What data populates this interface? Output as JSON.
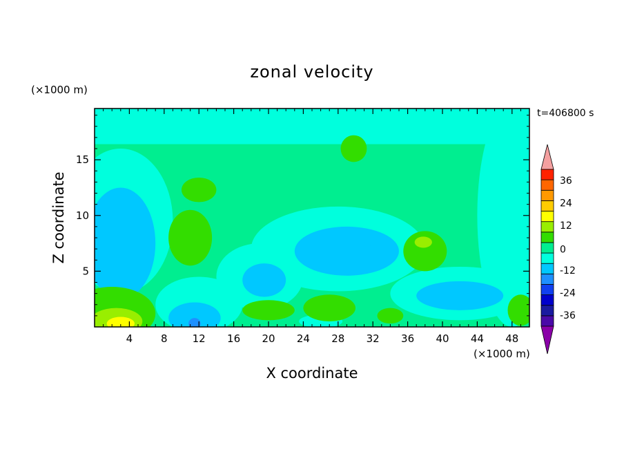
{
  "chart_data": {
    "type": "heatmap",
    "title": "zonal velocity",
    "xlabel": "X coordinate",
    "ylabel": "Z coordinate",
    "x_unit": "(×1000 m)",
    "y_unit": "(×1000 m)",
    "time_label": "t=406800 s",
    "xlim": [
      0,
      50
    ],
    "ylim": [
      0,
      19.6
    ],
    "xticks": [
      4,
      8,
      12,
      16,
      20,
      24,
      28,
      32,
      36,
      40,
      44,
      48
    ],
    "yticks": [
      5,
      10,
      15
    ],
    "colorbar": {
      "levels": [
        -42,
        -36,
        -30,
        -24,
        -18,
        -12,
        -6,
        0,
        6,
        12,
        18,
        24,
        30,
        36,
        42
      ],
      "colors": [
        "#4a0aa8",
        "#1a1aa0",
        "#0000cc",
        "#1040f0",
        "#1e90ff",
        "#00c8ff",
        "#00ffdd",
        "#00ee90",
        "#33dd00",
        "#99ee00",
        "#ffff00",
        "#ffcc00",
        "#ff9900",
        "#ff6600",
        "#ff2200"
      ],
      "under_color": "#8a00a8",
      "over_color": "#f4a0a0",
      "tick_labels": [
        "36",
        "24",
        "12",
        "0",
        "-12",
        "-24",
        "-36"
      ],
      "tick_values": [
        36,
        24,
        12,
        0,
        -12,
        -24,
        -36
      ]
    },
    "background_value": 3,
    "regions": [
      {
        "type": "rect",
        "x": [
          0,
          50
        ],
        "z": [
          16.4,
          19.6
        ],
        "value": -3
      },
      {
        "type": "ellipse",
        "cx": 3,
        "cy": 9.5,
        "rx": 6,
        "ry": 6.5,
        "value": -3
      },
      {
        "type": "ellipse",
        "cx": 3,
        "cy": 7.5,
        "rx": 4,
        "ry": 5,
        "value": -7
      },
      {
        "type": "ellipse",
        "cx": 3,
        "cy": 10.5,
        "rx": 1.8,
        "ry": 1.2,
        "value": -10
      },
      {
        "type": "ellipse",
        "cx": 1.5,
        "cy": 7.2,
        "rx": 1.2,
        "ry": 0.8,
        "value": -10
      },
      {
        "type": "ellipse",
        "cx": 48,
        "cy": 10,
        "rx": 4,
        "ry": 10,
        "value": -3
      },
      {
        "type": "ellipse",
        "cx": 28,
        "cy": 7,
        "rx": 10,
        "ry": 3.8,
        "value": -3
      },
      {
        "type": "ellipse",
        "cx": 29,
        "cy": 6.8,
        "rx": 6,
        "ry": 2.2,
        "value": -7
      },
      {
        "type": "ellipse",
        "cx": 29,
        "cy": 6.8,
        "rx": 3,
        "ry": 1.1,
        "value": -10
      },
      {
        "type": "ellipse",
        "cx": 19,
        "cy": 4.5,
        "rx": 5,
        "ry": 3,
        "value": -3
      },
      {
        "type": "ellipse",
        "cx": 19.5,
        "cy": 4.2,
        "rx": 2.5,
        "ry": 1.5,
        "value": -7
      },
      {
        "type": "ellipse",
        "cx": 12,
        "cy": 2,
        "rx": 5,
        "ry": 2.5,
        "value": -3
      },
      {
        "type": "ellipse",
        "cx": 11.5,
        "cy": 0.8,
        "rx": 3,
        "ry": 1.4,
        "value": -7
      },
      {
        "type": "ellipse",
        "cx": 11.5,
        "cy": 0.5,
        "rx": 1.6,
        "ry": 0.8,
        "value": -12
      },
      {
        "type": "ellipse",
        "cx": 11.5,
        "cy": 0.3,
        "rx": 0.7,
        "ry": 0.5,
        "value": -18
      },
      {
        "type": "ellipse",
        "cx": 42,
        "cy": 3,
        "rx": 8,
        "ry": 2.4,
        "value": -3
      },
      {
        "type": "ellipse",
        "cx": 42,
        "cy": 2.8,
        "rx": 5,
        "ry": 1.3,
        "value": -7
      },
      {
        "type": "ellipse",
        "cx": 26,
        "cy": 0.5,
        "rx": 2.5,
        "ry": 0.6,
        "value": -3
      },
      {
        "type": "ellipse",
        "cx": 2,
        "cy": 1.2,
        "rx": 5,
        "ry": 2.4,
        "value": 8
      },
      {
        "type": "ellipse",
        "cx": 2.5,
        "cy": 0.5,
        "rx": 3,
        "ry": 1.2,
        "value": 14
      },
      {
        "type": "ellipse",
        "cx": 3,
        "cy": 0.3,
        "rx": 1.6,
        "ry": 0.6,
        "value": 18
      },
      {
        "type": "ellipse",
        "cx": 11,
        "cy": 8,
        "rx": 2.5,
        "ry": 2.5,
        "value": 8
      },
      {
        "type": "ellipse",
        "cx": 12,
        "cy": 12.3,
        "rx": 2,
        "ry": 1.1,
        "value": 8
      },
      {
        "type": "ellipse",
        "cx": 29.8,
        "cy": 16,
        "rx": 1.5,
        "ry": 1.2,
        "value": 8
      },
      {
        "type": "ellipse",
        "cx": 38,
        "cy": 6.8,
        "rx": 2.5,
        "ry": 1.8,
        "value": 8
      },
      {
        "type": "ellipse",
        "cx": 37.8,
        "cy": 7.6,
        "rx": 1,
        "ry": 0.5,
        "value": 14
      },
      {
        "type": "ellipse",
        "cx": 20,
        "cy": 1.5,
        "rx": 3,
        "ry": 0.9,
        "value": 8
      },
      {
        "type": "ellipse",
        "cx": 27,
        "cy": 1.7,
        "rx": 3,
        "ry": 1.2,
        "value": 8
      },
      {
        "type": "ellipse",
        "cx": 49,
        "cy": 1.5,
        "rx": 1.5,
        "ry": 1.4,
        "value": 8
      },
      {
        "type": "ellipse",
        "cx": 34,
        "cy": 1,
        "rx": 1.5,
        "ry": 0.7,
        "value": 8
      }
    ]
  }
}
